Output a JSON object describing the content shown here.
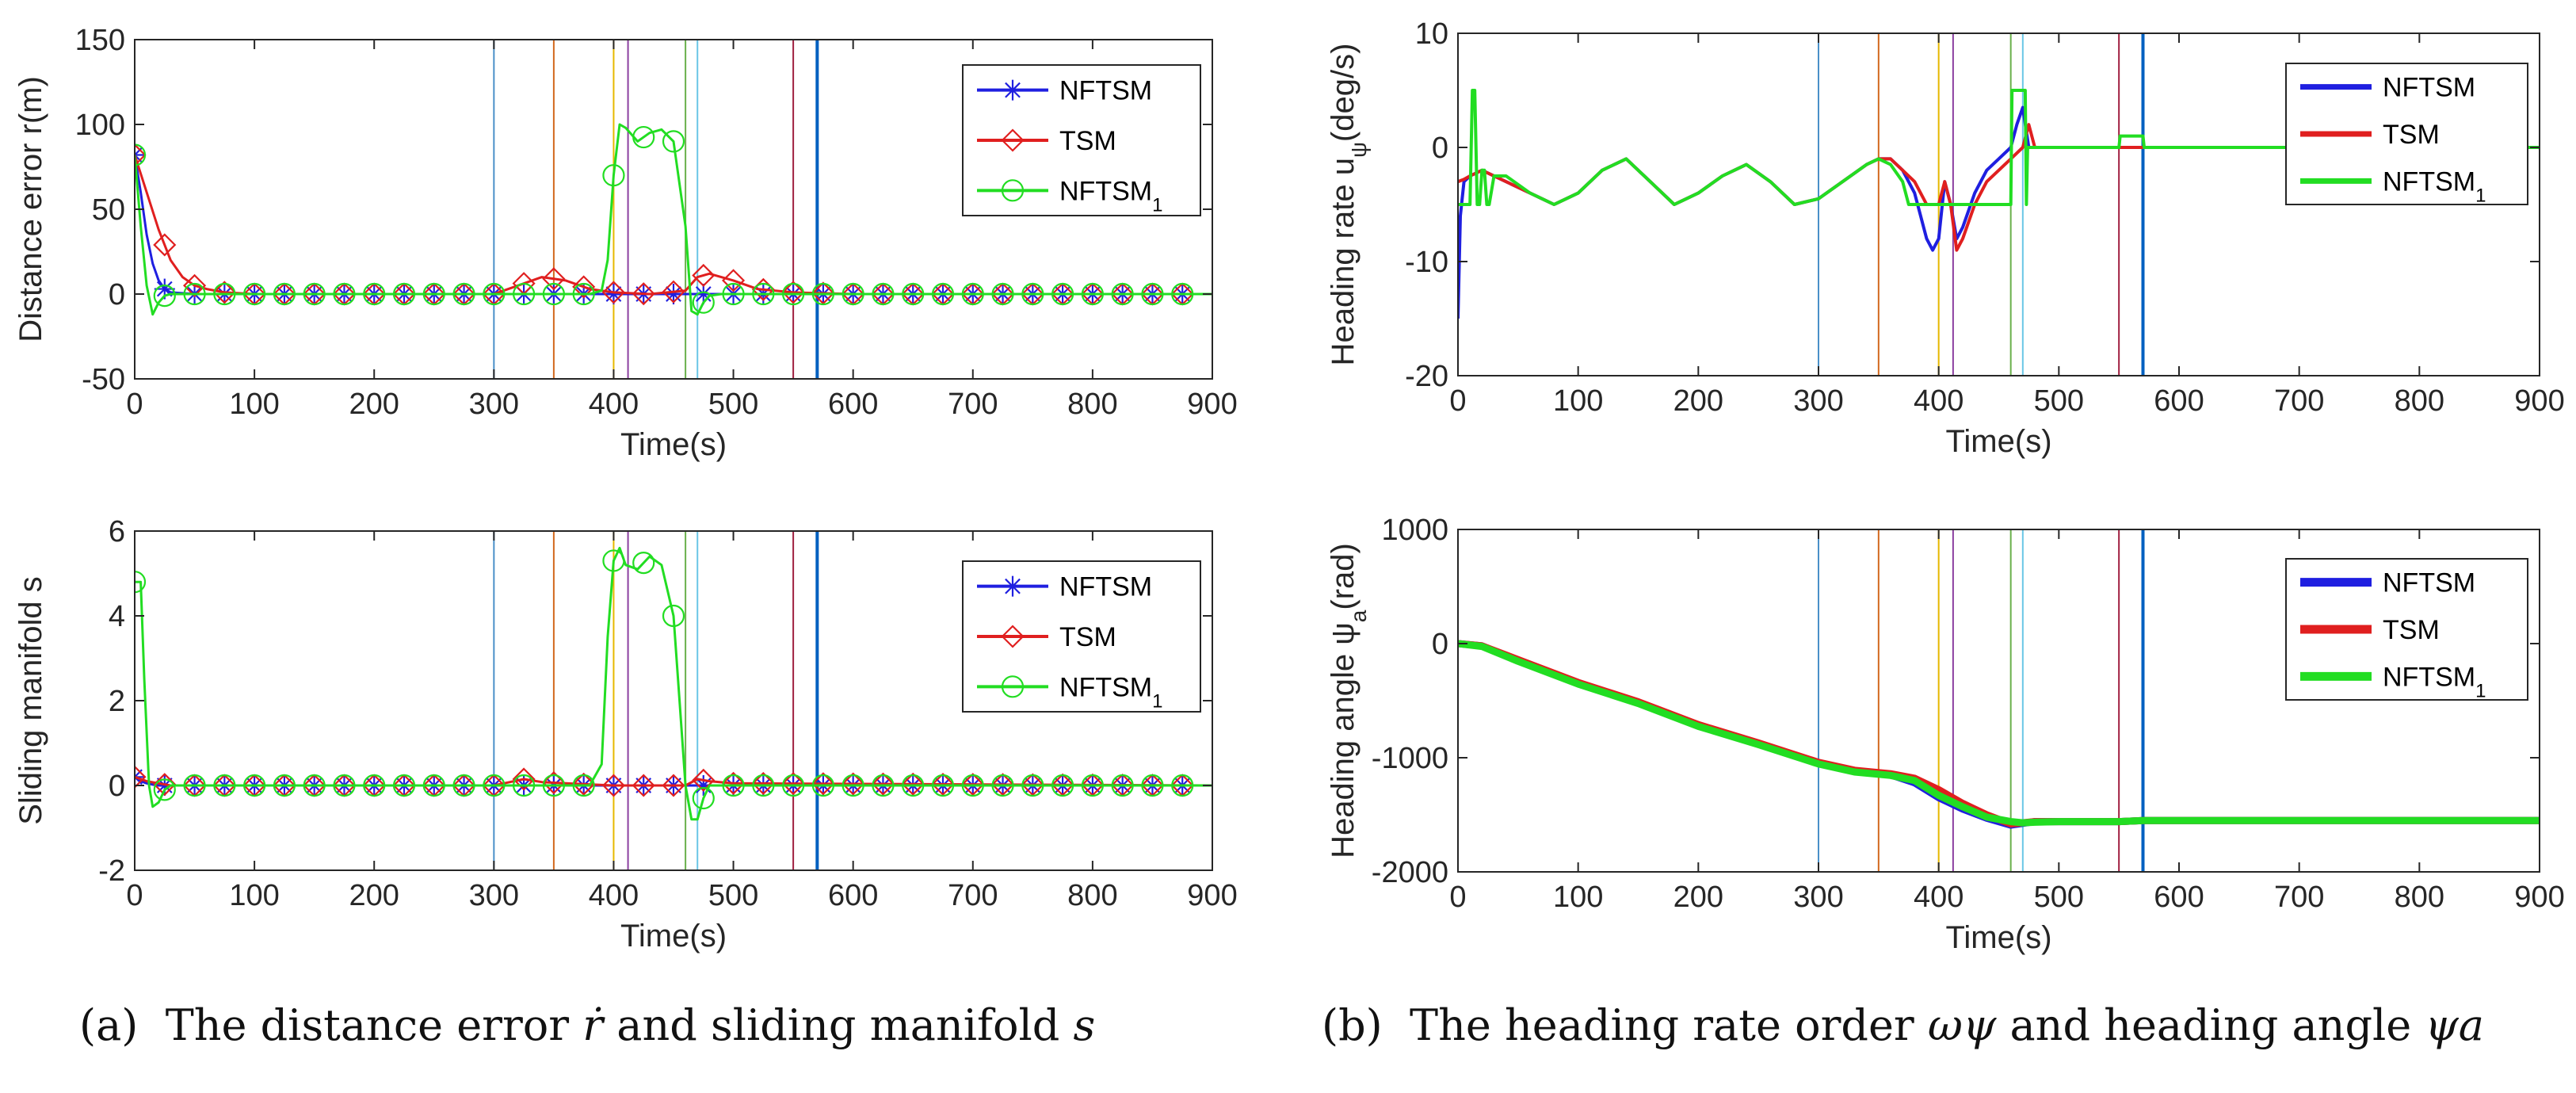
{
  "captions": {
    "a_prefix": "(a)",
    "a_text": "The distance error",
    "a_sym1": "ṙ",
    "a_mid": "and sliding manifold",
    "a_sym2": "s",
    "b_prefix": "(b)",
    "b_text": "The heading rate order",
    "b_sym1": "ωψ",
    "b_mid": "and heading angle",
    "b_sym2": "ψa"
  },
  "colors": {
    "NFTSM": "#1f1fe0",
    "TSM": "#e01f1f",
    "NFTSM1": "#22dd22",
    "axis": "#262626"
  },
  "switch_lines": [
    {
      "t": 300,
      "color": "#4a90c8"
    },
    {
      "t": 350,
      "color": "#d2691e"
    },
    {
      "t": 400,
      "color": "#e6b800"
    },
    {
      "t": 412,
      "color": "#8b3fa0"
    },
    {
      "t": 460,
      "color": "#6ab04c"
    },
    {
      "t": 470,
      "color": "#6ac6e6"
    },
    {
      "t": 550,
      "color": "#a02040"
    },
    {
      "t": 570,
      "color": "#0060c0"
    }
  ],
  "chart_data": [
    {
      "id": "distance-error",
      "type": "line",
      "xlabel": "Time(s)",
      "ylabel": "Distance error r(m)",
      "xlim": [
        0,
        900
      ],
      "ylim": [
        -50,
        150
      ],
      "xticks": [
        0,
        100,
        200,
        300,
        400,
        500,
        600,
        700,
        800,
        900
      ],
      "yticks": [
        -50,
        0,
        50,
        100,
        150
      ],
      "legend": [
        "NFTSM",
        "TSM",
        "NFTSM1"
      ],
      "series": [
        {
          "name": "NFTSM",
          "marker": "asterisk",
          "x": [
            0,
            5,
            10,
            15,
            20,
            25,
            30,
            50,
            100,
            300,
            400,
            500,
            570,
            900
          ],
          "y": [
            82,
            60,
            35,
            18,
            8,
            3,
            1,
            0,
            0,
            0,
            0,
            0,
            0,
            0
          ]
        },
        {
          "name": "TSM",
          "marker": "diamond",
          "x": [
            0,
            10,
            20,
            30,
            40,
            50,
            60,
            75,
            100,
            300,
            320,
            340,
            360,
            380,
            400,
            430,
            460,
            470,
            480,
            500,
            520,
            550,
            600,
            900
          ],
          "y": [
            82,
            60,
            38,
            20,
            10,
            5,
            3,
            1,
            0,
            0,
            5,
            10,
            8,
            3,
            1,
            0,
            2,
            10,
            12,
            8,
            3,
            1,
            0,
            0
          ]
        },
        {
          "name": "NFTSM1",
          "marker": "circle",
          "x": [
            0,
            5,
            10,
            15,
            20,
            25,
            30,
            50,
            100,
            300,
            380,
            390,
            395,
            400,
            405,
            410,
            420,
            430,
            440,
            450,
            460,
            465,
            470,
            475,
            480,
            490,
            500,
            900
          ],
          "y": [
            82,
            40,
            5,
            -12,
            -5,
            -1,
            0,
            0,
            0,
            0,
            0,
            2,
            20,
            70,
            100,
            98,
            90,
            95,
            97,
            90,
            40,
            -10,
            -12,
            -5,
            -1,
            0,
            0,
            0
          ]
        }
      ]
    },
    {
      "id": "sliding-manifold",
      "type": "line",
      "xlabel": "Time(s)",
      "ylabel": "Sliding manifold s",
      "xlim": [
        0,
        900
      ],
      "ylim": [
        -2,
        6
      ],
      "xticks": [
        0,
        100,
        200,
        300,
        400,
        500,
        600,
        700,
        800,
        900
      ],
      "yticks": [
        -2,
        0,
        2,
        4,
        6
      ],
      "legend": [
        "NFTSM",
        "TSM",
        "NFTSM1"
      ],
      "series": [
        {
          "name": "NFTSM",
          "marker": "asterisk",
          "x": [
            0,
            5,
            10,
            15,
            20,
            30,
            900
          ],
          "y": [
            0.2,
            0.1,
            0.05,
            0.02,
            0,
            0,
            0
          ]
        },
        {
          "name": "TSM",
          "marker": "diamond",
          "x": [
            0,
            10,
            20,
            30,
            300,
            325,
            340,
            360,
            400,
            460,
            470,
            480,
            500,
            900
          ],
          "y": [
            0.2,
            0.1,
            0.05,
            0,
            0,
            0.15,
            0.08,
            0.05,
            0,
            0,
            0.15,
            0.1,
            0.05,
            0
          ]
        },
        {
          "name": "NFTSM1",
          "marker": "circle",
          "x": [
            0,
            5,
            8,
            12,
            15,
            20,
            25,
            30,
            380,
            390,
            395,
            400,
            405,
            410,
            420,
            430,
            440,
            450,
            455,
            460,
            465,
            470,
            475,
            480,
            900
          ],
          "y": [
            4.8,
            4.8,
            2.5,
            0,
            -0.5,
            -0.4,
            -0.1,
            0,
            0,
            0.5,
            3.5,
            5.3,
            5.6,
            5.2,
            5.1,
            5.4,
            5.2,
            4,
            2,
            0,
            -0.8,
            -0.8,
            -0.3,
            0,
            0
          ]
        }
      ]
    },
    {
      "id": "heading-rate",
      "type": "line",
      "xlabel": "Time(s)",
      "ylabel": "Heading rate uψ(deg/s)",
      "ylabel_main": "Heading rate u",
      "ylabel_sub": "ψ",
      "ylabel_tail": "(deg/s)",
      "xlim": [
        0,
        900
      ],
      "ylim": [
        -20,
        10
      ],
      "xticks": [
        0,
        100,
        200,
        300,
        400,
        500,
        600,
        700,
        800,
        900
      ],
      "yticks": [
        -20,
        -10,
        0,
        10
      ],
      "legend": [
        "NFTSM",
        "TSM",
        "NFTSM1"
      ],
      "series": [
        {
          "name": "NFTSM",
          "x": [
            0,
            2,
            5,
            10,
            20,
            40,
            60,
            80,
            100,
            120,
            140,
            160,
            180,
            200,
            220,
            240,
            260,
            280,
            300,
            320,
            340,
            350,
            360,
            370,
            380,
            390,
            395,
            400,
            405,
            410,
            415,
            420,
            430,
            440,
            450,
            460,
            465,
            470,
            475,
            480,
            500,
            540,
            550,
            570,
            900
          ],
          "y": [
            -15,
            -6,
            -3,
            -2.5,
            -2,
            -3,
            -4,
            -5,
            -4,
            -2,
            -1,
            -3,
            -5,
            -4,
            -2.5,
            -1.5,
            -3,
            -5,
            -4.5,
            -3,
            -1.5,
            -1,
            -1,
            -2,
            -4,
            -8,
            -9,
            -8,
            -3,
            -5,
            -8,
            -7,
            -4,
            -2,
            -1,
            0,
            2,
            3.5,
            0,
            0,
            0,
            0,
            0,
            0,
            0
          ]
        },
        {
          "name": "TSM",
          "x": [
            0,
            5,
            10,
            20,
            40,
            60,
            80,
            100,
            120,
            140,
            160,
            180,
            200,
            220,
            240,
            260,
            280,
            300,
            320,
            340,
            350,
            360,
            370,
            380,
            390,
            400,
            405,
            410,
            415,
            420,
            430,
            440,
            450,
            460,
            470,
            475,
            480,
            500,
            540,
            550,
            570,
            900
          ],
          "y": [
            -3,
            -2.8,
            -2.5,
            -2,
            -3,
            -4,
            -5,
            -4,
            -2,
            -1,
            -3,
            -5,
            -4,
            -2.5,
            -1.5,
            -3,
            -5,
            -4.5,
            -3,
            -1.5,
            -1,
            -1,
            -2,
            -3,
            -5,
            -5,
            -3,
            -5,
            -9,
            -8,
            -5,
            -3,
            -2,
            -1,
            0,
            2,
            0,
            0,
            0,
            0,
            0,
            0
          ]
        },
        {
          "name": "NFTSM1",
          "x": [
            0,
            10,
            12,
            14,
            16,
            18,
            20,
            22,
            24,
            26,
            30,
            40,
            60,
            80,
            100,
            120,
            140,
            160,
            180,
            200,
            220,
            240,
            260,
            280,
            300,
            320,
            340,
            350,
            360,
            370,
            375,
            380,
            390,
            400,
            410,
            420,
            430,
            440,
            450,
            460,
            461,
            462,
            470,
            472,
            473,
            474,
            480,
            500,
            550,
            551,
            570,
            571,
            900
          ],
          "y": [
            -5,
            -5,
            5,
            5,
            -5,
            -5,
            -2,
            -2,
            -5,
            -5,
            -2.5,
            -2.5,
            -4,
            -5,
            -4,
            -2,
            -1,
            -3,
            -5,
            -4,
            -2.5,
            -1.5,
            -3,
            -5,
            -4.5,
            -3,
            -1.5,
            -1,
            -1.5,
            -3,
            -5,
            -5,
            -5,
            -5,
            -5,
            -5,
            -5,
            -5,
            -5,
            -5,
            5,
            5,
            5,
            5,
            -5,
            0,
            0,
            0,
            0,
            1,
            1,
            0,
            0
          ]
        }
      ]
    },
    {
      "id": "heading-angle",
      "type": "line",
      "xlabel": "Time(s)",
      "ylabel": "Heading angle ψa(rad)",
      "ylabel_main": "Heading angle ψ",
      "ylabel_sub": "a",
      "ylabel_tail": "(rad)",
      "xlim": [
        0,
        900
      ],
      "ylim": [
        -2000,
        1000
      ],
      "xticks": [
        0,
        100,
        200,
        300,
        400,
        500,
        600,
        700,
        800,
        900
      ],
      "yticks": [
        -2000,
        -1000,
        0,
        1000
      ],
      "legend": [
        "NFTSM",
        "TSM",
        "NFTSM1"
      ],
      "series": [
        {
          "name": "NFTSM",
          "x": [
            0,
            20,
            50,
            100,
            150,
            200,
            250,
            300,
            330,
            360,
            380,
            400,
            420,
            440,
            460,
            480,
            500,
            550,
            570,
            900
          ],
          "y": [
            0,
            -20,
            -150,
            -350,
            -520,
            -720,
            -880,
            -1050,
            -1120,
            -1150,
            -1220,
            -1350,
            -1450,
            -1530,
            -1590,
            -1560,
            -1560,
            -1560,
            -1550,
            -1550
          ]
        },
        {
          "name": "TSM",
          "x": [
            0,
            20,
            50,
            100,
            150,
            200,
            250,
            300,
            330,
            360,
            380,
            400,
            420,
            440,
            460,
            480,
            500,
            550,
            570,
            900
          ],
          "y": [
            0,
            -20,
            -140,
            -340,
            -510,
            -710,
            -870,
            -1040,
            -1110,
            -1140,
            -1180,
            -1280,
            -1400,
            -1500,
            -1580,
            -1560,
            -1560,
            -1560,
            -1550,
            -1550
          ]
        },
        {
          "name": "NFTSM1",
          "x": [
            0,
            20,
            50,
            100,
            150,
            200,
            250,
            300,
            330,
            360,
            380,
            400,
            420,
            440,
            460,
            470,
            480,
            500,
            550,
            570,
            900
          ],
          "y": [
            0,
            -25,
            -155,
            -355,
            -525,
            -725,
            -885,
            -1055,
            -1125,
            -1155,
            -1200,
            -1330,
            -1430,
            -1520,
            -1560,
            -1570,
            -1565,
            -1560,
            -1560,
            -1550,
            -1550
          ]
        }
      ]
    }
  ]
}
